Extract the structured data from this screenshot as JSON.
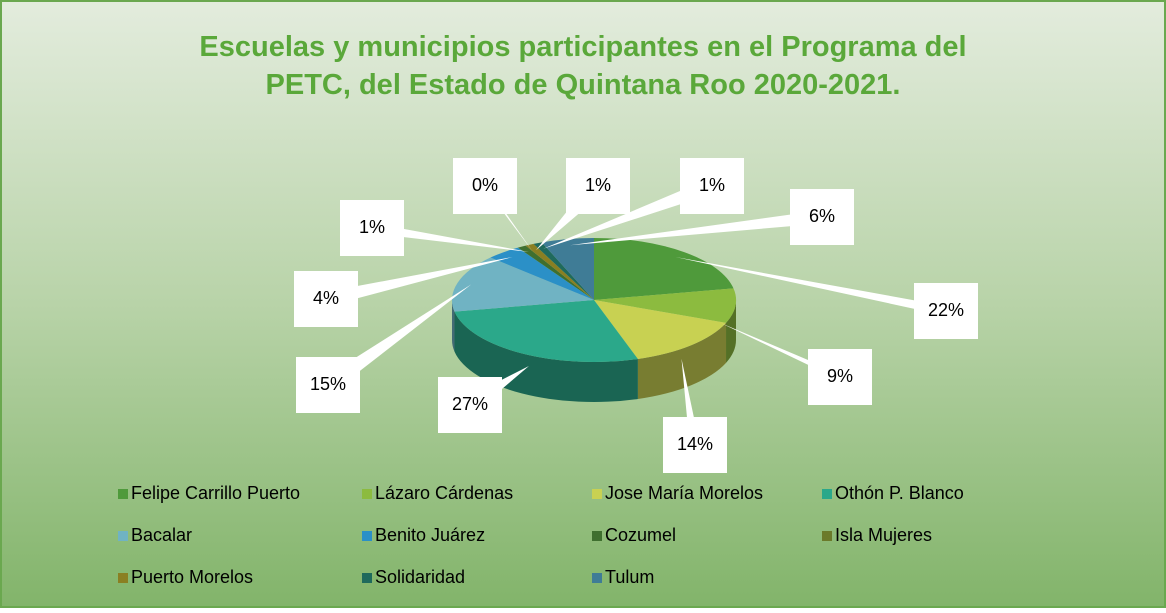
{
  "chart_data": {
    "type": "pie3d",
    "title": "Escuelas y municipios participantes en el Programa del PETC, del Estado de Quintana Roo 2020-2021.",
    "categories": [
      "Felipe Carrillo Puerto",
      "Lázaro Cárdenas",
      "Jose María Morelos",
      "Othón P. Blanco",
      "Bacalar",
      "Benito Juárez",
      "Cozumel",
      "Isla Mujeres",
      "Puerto Morelos",
      "Solidaridad",
      "Tulum"
    ],
    "values": [
      22,
      9,
      14,
      27,
      15,
      4,
      1,
      0,
      1,
      1,
      6
    ],
    "value_labels": [
      "22%",
      "9%",
      "14%",
      "27%",
      "15%",
      "4%",
      "1%",
      "0%",
      "1%",
      "1%",
      "6%"
    ],
    "colors": [
      "#4f9a3b",
      "#8cbb3f",
      "#c8d152",
      "#2ba88a",
      "#70b3c3",
      "#2b90c7",
      "#3f6f2f",
      "#6b7a2a",
      "#8a7f22",
      "#1f6a5c",
      "#3f7c96"
    ],
    "legend": "bottom"
  }
}
